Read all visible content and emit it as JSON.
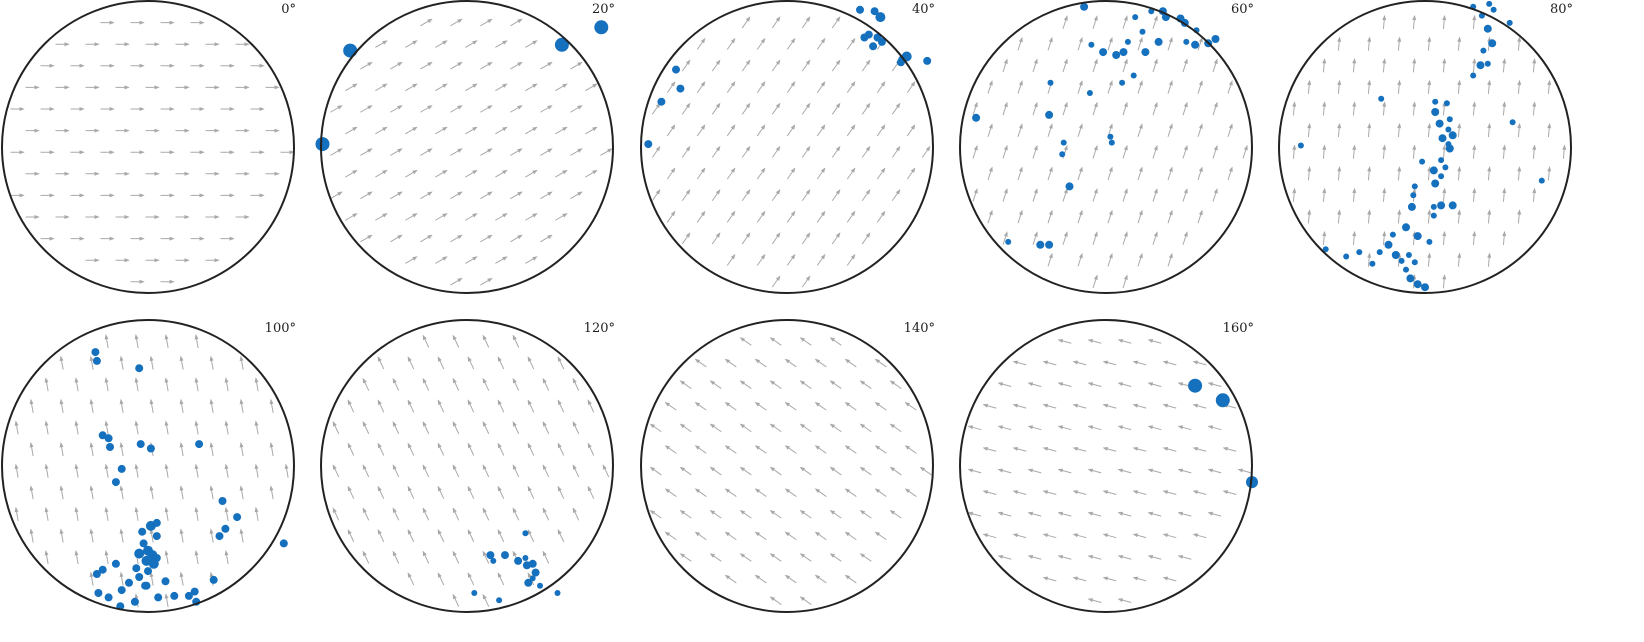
{
  "colors": {
    "grain": "#1570be",
    "arrow": "#a9a9a9",
    "outline": "#222222",
    "background": "#ffffff"
  },
  "chart_data": [
    {
      "type": "scatter",
      "title": "0°",
      "panel_label": "0°",
      "projection": "equal-area pole figure (unit circle)",
      "arrow_field": {
        "density": "uniform grid",
        "direction_deg": 0
      },
      "points": []
    },
    {
      "type": "scatter",
      "title": "20°",
      "panel_label": "20°",
      "arrow_field": {
        "direction_deg": 30
      },
      "points": [
        {
          "x": -0.8,
          "y": 0.66,
          "s": 7
        },
        {
          "x": -0.99,
          "y": 0.02,
          "s": 7
        },
        {
          "x": 0.65,
          "y": 0.7,
          "s": 7
        },
        {
          "x": 0.92,
          "y": 0.82,
          "s": 7
        }
      ]
    },
    {
      "type": "scatter",
      "title": "40°",
      "panel_label": "40°",
      "arrow_field": {
        "direction_deg": 55
      },
      "points": [
        {
          "x": 0.5,
          "y": 0.94,
          "s": 4
        },
        {
          "x": 0.6,
          "y": 0.93,
          "s": 4
        },
        {
          "x": 0.64,
          "y": 0.89,
          "s": 5
        },
        {
          "x": 0.65,
          "y": 0.72,
          "s": 4
        },
        {
          "x": 0.59,
          "y": 0.69,
          "s": 4
        },
        {
          "x": 0.56,
          "y": 0.77,
          "s": 4
        },
        {
          "x": 0.53,
          "y": 0.75,
          "s": 4
        },
        {
          "x": 0.62,
          "y": 0.75,
          "s": 4
        },
        {
          "x": 0.79,
          "y": 0.6,
          "s": 4
        },
        {
          "x": 0.82,
          "y": 0.62,
          "s": 5
        },
        {
          "x": 0.78,
          "y": 0.58,
          "s": 4
        },
        {
          "x": 0.96,
          "y": 0.59,
          "s": 4
        },
        {
          "x": -0.76,
          "y": 0.53,
          "s": 4
        },
        {
          "x": -0.73,
          "y": 0.4,
          "s": 4
        },
        {
          "x": -0.86,
          "y": 0.31,
          "s": 4
        },
        {
          "x": -0.95,
          "y": 0.02,
          "s": 4
        }
      ]
    },
    {
      "type": "scatter",
      "title": "60°",
      "panel_label": "60°",
      "arrow_field": {
        "direction_deg": 72
      },
      "points": [
        {
          "x": -0.15,
          "y": 0.96,
          "s": 4
        },
        {
          "x": 0.2,
          "y": 0.89,
          "s": 3
        },
        {
          "x": 0.31,
          "y": 0.93,
          "s": 3
        },
        {
          "x": 0.39,
          "y": 0.93,
          "s": 4
        },
        {
          "x": 0.41,
          "y": 0.89,
          "s": 4
        },
        {
          "x": 0.51,
          "y": 0.88,
          "s": 4
        },
        {
          "x": 0.54,
          "y": 0.85,
          "s": 4
        },
        {
          "x": 0.62,
          "y": 0.8,
          "s": 3
        },
        {
          "x": 0.7,
          "y": 0.71,
          "s": 4
        },
        {
          "x": 0.75,
          "y": 0.74,
          "s": 4
        },
        {
          "x": 0.61,
          "y": 0.7,
          "s": 4
        },
        {
          "x": 0.55,
          "y": 0.72,
          "s": 3
        },
        {
          "x": 0.25,
          "y": 0.79,
          "s": 3
        },
        {
          "x": 0.36,
          "y": 0.72,
          "s": 4
        },
        {
          "x": 0.27,
          "y": 0.65,
          "s": 4
        },
        {
          "x": 0.15,
          "y": 0.72,
          "s": 3
        },
        {
          "x": 0.12,
          "y": 0.65,
          "s": 4
        },
        {
          "x": 0.07,
          "y": 0.63,
          "s": 4
        },
        {
          "x": -0.02,
          "y": 0.65,
          "s": 4
        },
        {
          "x": -0.1,
          "y": 0.7,
          "s": 3
        },
        {
          "x": 0.19,
          "y": 0.49,
          "s": 3
        },
        {
          "x": 0.11,
          "y": 0.44,
          "s": 3
        },
        {
          "x": -0.11,
          "y": 0.37,
          "s": 3
        },
        {
          "x": -0.38,
          "y": 0.44,
          "s": 3
        },
        {
          "x": -0.39,
          "y": 0.22,
          "s": 4
        },
        {
          "x": -0.89,
          "y": 0.2,
          "s": 4
        },
        {
          "x": 0.03,
          "y": 0.07,
          "s": 3
        },
        {
          "x": 0.04,
          "y": 0.03,
          "s": 3
        },
        {
          "x": -0.29,
          "y": 0.03,
          "s": 3
        },
        {
          "x": -0.3,
          "y": -0.05,
          "s": 3
        },
        {
          "x": -0.25,
          "y": -0.27,
          "s": 4
        },
        {
          "x": -0.67,
          "y": -0.65,
          "s": 3
        },
        {
          "x": -0.45,
          "y": -0.67,
          "s": 4
        },
        {
          "x": -0.39,
          "y": -0.67,
          "s": 4
        }
      ]
    },
    {
      "type": "scatter",
      "title": "80°",
      "panel_label": "80°",
      "arrow_field": {
        "direction_deg": 85
      },
      "points": [
        {
          "x": 0.33,
          "y": 0.96,
          "s": 3
        },
        {
          "x": 0.44,
          "y": 0.98,
          "s": 3
        },
        {
          "x": 0.47,
          "y": 0.94,
          "s": 3
        },
        {
          "x": 0.58,
          "y": 0.85,
          "s": 3
        },
        {
          "x": 0.39,
          "y": 0.9,
          "s": 3
        },
        {
          "x": 0.43,
          "y": 0.81,
          "s": 4
        },
        {
          "x": 0.46,
          "y": 0.71,
          "s": 4
        },
        {
          "x": 0.4,
          "y": 0.66,
          "s": 3
        },
        {
          "x": 0.38,
          "y": 0.56,
          "s": 4
        },
        {
          "x": 0.43,
          "y": 0.57,
          "s": 3
        },
        {
          "x": 0.33,
          "y": 0.49,
          "s": 3
        },
        {
          "x": 0.07,
          "y": 0.31,
          "s": 3
        },
        {
          "x": 0.15,
          "y": 0.3,
          "s": 3
        },
        {
          "x": 0.07,
          "y": 0.24,
          "s": 4
        },
        {
          "x": 0.17,
          "y": 0.19,
          "s": 3
        },
        {
          "x": 0.1,
          "y": 0.16,
          "s": 4
        },
        {
          "x": 0.16,
          "y": 0.12,
          "s": 3
        },
        {
          "x": 0.19,
          "y": 0.08,
          "s": 4
        },
        {
          "x": 0.12,
          "y": 0.06,
          "s": 4
        },
        {
          "x": 0.16,
          "y": 0.02,
          "s": 3
        },
        {
          "x": 0.17,
          "y": -0.01,
          "s": 4
        },
        {
          "x": 0.11,
          "y": -0.09,
          "s": 3
        },
        {
          "x": 0.14,
          "y": -0.14,
          "s": 3
        },
        {
          "x": 0.06,
          "y": -0.16,
          "s": 4
        },
        {
          "x": 0.11,
          "y": -0.2,
          "s": 3
        },
        {
          "x": 0.07,
          "y": -0.25,
          "s": 4
        },
        {
          "x": -0.02,
          "y": -0.1,
          "s": 3
        },
        {
          "x": -0.07,
          "y": -0.27,
          "s": 3
        },
        {
          "x": -0.08,
          "y": -0.33,
          "s": 3
        },
        {
          "x": -0.09,
          "y": -0.41,
          "s": 4
        },
        {
          "x": 0.06,
          "y": -0.41,
          "s": 3
        },
        {
          "x": 0.11,
          "y": -0.4,
          "s": 4
        },
        {
          "x": 0.19,
          "y": -0.4,
          "s": 4
        },
        {
          "x": 0.06,
          "y": -0.47,
          "s": 3
        },
        {
          "x": -0.13,
          "y": -0.55,
          "s": 4
        },
        {
          "x": -0.05,
          "y": -0.61,
          "s": 4
        },
        {
          "x": -0.22,
          "y": -0.6,
          "s": 3
        },
        {
          "x": -0.25,
          "y": -0.67,
          "s": 4
        },
        {
          "x": -0.31,
          "y": -0.72,
          "s": 3
        },
        {
          "x": -0.2,
          "y": -0.74,
          "s": 4
        },
        {
          "x": -0.11,
          "y": -0.74,
          "s": 3
        },
        {
          "x": -0.16,
          "y": -0.78,
          "s": 3
        },
        {
          "x": -0.13,
          "y": -0.84,
          "s": 3
        },
        {
          "x": -0.07,
          "y": -0.79,
          "s": 3
        },
        {
          "x": -0.1,
          "y": -0.9,
          "s": 4
        },
        {
          "x": -0.05,
          "y": -0.94,
          "s": 4
        },
        {
          "x": 0.0,
          "y": -0.96,
          "s": 4
        },
        {
          "x": -0.45,
          "y": -0.72,
          "s": 3
        },
        {
          "x": -0.54,
          "y": -0.75,
          "s": 3
        },
        {
          "x": -0.68,
          "y": -0.7,
          "s": 3
        },
        {
          "x": -0.36,
          "y": -0.8,
          "s": 3
        },
        {
          "x": 0.03,
          "y": -0.65,
          "s": 3
        },
        {
          "x": -0.3,
          "y": 0.33,
          "s": 3
        },
        {
          "x": -0.85,
          "y": 0.01,
          "s": 3
        },
        {
          "x": 0.6,
          "y": 0.17,
          "s": 3
        },
        {
          "x": 0.8,
          "y": -0.23,
          "s": 3
        }
      ]
    },
    {
      "type": "scatter",
      "title": "100°",
      "panel_label": "100°",
      "arrow_field": {
        "direction_deg": 100
      },
      "points": [
        {
          "x": -0.36,
          "y": 0.78,
          "s": 4
        },
        {
          "x": -0.35,
          "y": 0.72,
          "s": 4
        },
        {
          "x": -0.06,
          "y": 0.67,
          "s": 4
        },
        {
          "x": -0.31,
          "y": 0.21,
          "s": 4
        },
        {
          "x": -0.27,
          "y": 0.19,
          "s": 4
        },
        {
          "x": -0.26,
          "y": 0.13,
          "s": 4
        },
        {
          "x": -0.05,
          "y": 0.15,
          "s": 4
        },
        {
          "x": 0.02,
          "y": 0.12,
          "s": 4
        },
        {
          "x": -0.18,
          "y": -0.02,
          "s": 4
        },
        {
          "x": 0.35,
          "y": 0.15,
          "s": 4
        },
        {
          "x": -0.22,
          "y": -0.11,
          "s": 4
        },
        {
          "x": 0.06,
          "y": -0.39,
          "s": 4
        },
        {
          "x": 0.02,
          "y": -0.41,
          "s": 5
        },
        {
          "x": -0.04,
          "y": -0.45,
          "s": 4
        },
        {
          "x": 0.06,
          "y": -0.48,
          "s": 4
        },
        {
          "x": -0.03,
          "y": -0.53,
          "s": 4
        },
        {
          "x": 0.0,
          "y": -0.58,
          "s": 5
        },
        {
          "x": -0.06,
          "y": -0.6,
          "s": 5
        },
        {
          "x": 0.03,
          "y": -0.61,
          "s": 5
        },
        {
          "x": 0.06,
          "y": -0.63,
          "s": 4
        },
        {
          "x": -0.01,
          "y": -0.65,
          "s": 5
        },
        {
          "x": 0.04,
          "y": -0.67,
          "s": 5
        },
        {
          "x": 0.0,
          "y": -0.72,
          "s": 4
        },
        {
          "x": -0.08,
          "y": -0.7,
          "s": 4
        },
        {
          "x": -0.22,
          "y": -0.67,
          "s": 4
        },
        {
          "x": -0.31,
          "y": -0.71,
          "s": 4
        },
        {
          "x": -0.06,
          "y": -0.76,
          "s": 4
        },
        {
          "x": -0.13,
          "y": -0.8,
          "s": 4
        },
        {
          "x": -0.18,
          "y": -0.85,
          "s": 4
        },
        {
          "x": -0.01,
          "y": -0.82,
          "s": 4
        },
        {
          "x": 0.12,
          "y": -0.79,
          "s": 4
        },
        {
          "x": -0.35,
          "y": -0.74,
          "s": 4
        },
        {
          "x": 0.18,
          "y": -0.89,
          "s": 4
        },
        {
          "x": 0.07,
          "y": -0.9,
          "s": 4
        },
        {
          "x": 0.28,
          "y": -0.89,
          "s": 4
        },
        {
          "x": 0.32,
          "y": -0.86,
          "s": 4
        },
        {
          "x": 0.33,
          "y": -0.93,
          "s": 4
        },
        {
          "x": 0.45,
          "y": -0.78,
          "s": 4
        },
        {
          "x": -0.02,
          "y": -0.82,
          "s": 4
        },
        {
          "x": 0.53,
          "y": -0.43,
          "s": 4
        },
        {
          "x": 0.49,
          "y": -0.48,
          "s": 4
        },
        {
          "x": 0.61,
          "y": -0.35,
          "s": 4
        },
        {
          "x": 0.51,
          "y": -0.24,
          "s": 4
        },
        {
          "x": 0.93,
          "y": -0.53,
          "s": 4
        },
        {
          "x": -0.34,
          "y": -0.87,
          "s": 4
        },
        {
          "x": -0.27,
          "y": -0.9,
          "s": 4
        },
        {
          "x": -0.19,
          "y": -0.96,
          "s": 4
        },
        {
          "x": -0.09,
          "y": -0.93,
          "s": 4
        }
      ]
    },
    {
      "type": "scatter",
      "title": "120°",
      "panel_label": "120°",
      "arrow_field": {
        "direction_deg": 115
      },
      "points": [
        {
          "x": 0.4,
          "y": -0.46,
          "s": 3
        },
        {
          "x": 0.16,
          "y": -0.61,
          "s": 4
        },
        {
          "x": 0.26,
          "y": -0.61,
          "s": 4
        },
        {
          "x": 0.18,
          "y": -0.65,
          "s": 3
        },
        {
          "x": 0.35,
          "y": -0.65,
          "s": 4
        },
        {
          "x": 0.4,
          "y": -0.63,
          "s": 3
        },
        {
          "x": 0.41,
          "y": -0.68,
          "s": 4
        },
        {
          "x": 0.45,
          "y": -0.67,
          "s": 4
        },
        {
          "x": 0.47,
          "y": -0.73,
          "s": 4
        },
        {
          "x": 0.42,
          "y": -0.8,
          "s": 4
        },
        {
          "x": 0.45,
          "y": -0.77,
          "s": 3
        },
        {
          "x": 0.5,
          "y": -0.82,
          "s": 3
        },
        {
          "x": 0.05,
          "y": -0.87,
          "s": 3
        },
        {
          "x": 0.62,
          "y": -0.87,
          "s": 3
        },
        {
          "x": 0.22,
          "y": -0.92,
          "s": 3
        }
      ]
    },
    {
      "type": "scatter",
      "title": "140°",
      "panel_label": "140°",
      "arrow_field": {
        "direction_deg": 145
      },
      "points": []
    },
    {
      "type": "scatter",
      "title": "160°",
      "panel_label": "160°",
      "arrow_field": {
        "direction_deg": 165
      },
      "points": [
        {
          "x": 0.61,
          "y": 0.55,
          "s": 7
        },
        {
          "x": 0.8,
          "y": 0.45,
          "s": 7
        },
        {
          "x": 1.0,
          "y": -0.11,
          "s": 6
        }
      ]
    }
  ]
}
